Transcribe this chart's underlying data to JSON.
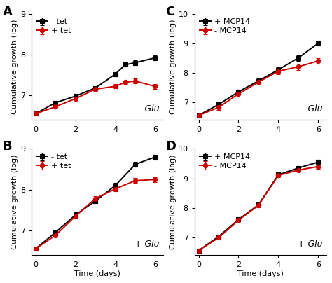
{
  "panels": {
    "A": {
      "label": "A",
      "x": [
        0,
        1,
        2,
        3,
        4,
        4.5,
        5,
        6
      ],
      "black_y": [
        6.55,
        6.82,
        6.98,
        7.18,
        7.52,
        7.75,
        7.8,
        7.92
      ],
      "red_y": [
        6.55,
        6.72,
        6.92,
        7.15,
        7.22,
        7.32,
        7.35,
        7.22
      ],
      "black_err": [
        0.02,
        0.04,
        0.04,
        0.04,
        0.05,
        0.05,
        0.06,
        0.06
      ],
      "red_err": [
        0.02,
        0.04,
        0.04,
        0.04,
        0.05,
        0.05,
        0.06,
        0.06
      ],
      "black_label": "- tet",
      "red_label": "+ tet",
      "annotation": "- Glu",
      "ylim": [
        6.4,
        9.0
      ],
      "yticks": [
        7,
        8,
        9
      ],
      "show_xlabel": false
    },
    "B": {
      "label": "B",
      "x": [
        0,
        1,
        2,
        3,
        4,
        5,
        6
      ],
      "black_y": [
        6.55,
        6.95,
        7.38,
        7.72,
        8.1,
        8.62,
        8.8
      ],
      "red_y": [
        6.55,
        6.88,
        7.35,
        7.78,
        8.02,
        8.22,
        8.25
      ],
      "black_err": [
        0.02,
        0.04,
        0.06,
        0.06,
        0.06,
        0.06,
        0.06
      ],
      "red_err": [
        0.02,
        0.04,
        0.06,
        0.06,
        0.06,
        0.06,
        0.06
      ],
      "black_label": "- tet",
      "red_label": "+ tet",
      "annotation": "+ Glu",
      "ylim": [
        6.4,
        9.0
      ],
      "yticks": [
        7,
        8,
        9
      ],
      "show_xlabel": true
    },
    "C": {
      "label": "C",
      "x": [
        0,
        1,
        2,
        3,
        4,
        5,
        6
      ],
      "black_y": [
        6.55,
        6.92,
        7.35,
        7.72,
        8.1,
        8.5,
        9.0
      ],
      "red_y": [
        6.55,
        6.82,
        7.28,
        7.68,
        8.05,
        8.2,
        8.4
      ],
      "black_err": [
        0.02,
        0.07,
        0.07,
        0.08,
        0.08,
        0.09,
        0.09
      ],
      "red_err": [
        0.02,
        0.09,
        0.09,
        0.1,
        0.1,
        0.1,
        0.1
      ],
      "black_label": "+ MCP14",
      "red_label": "- MCP14",
      "annotation": "- Glu",
      "ylim": [
        6.4,
        10.0
      ],
      "yticks": [
        7,
        8,
        9,
        10
      ],
      "show_xlabel": false
    },
    "D": {
      "label": "D",
      "x": [
        0,
        1,
        2,
        3,
        4,
        5,
        6
      ],
      "black_y": [
        6.55,
        7.02,
        7.6,
        8.1,
        9.12,
        9.35,
        9.55
      ],
      "red_y": [
        6.55,
        6.98,
        7.58,
        8.08,
        9.1,
        9.28,
        9.4
      ],
      "black_err": [
        0.02,
        0.05,
        0.06,
        0.06,
        0.06,
        0.06,
        0.07
      ],
      "red_err": [
        0.02,
        0.05,
        0.06,
        0.06,
        0.06,
        0.06,
        0.07
      ],
      "black_label": "+ MCP14",
      "red_label": "- MCP14",
      "annotation": "+ Glu",
      "ylim": [
        6.4,
        10.0
      ],
      "yticks": [
        7,
        8,
        9,
        10
      ],
      "show_xlabel": true
    }
  },
  "black_color": "#000000",
  "red_color": "#cc0000",
  "xlabel": "Time (days)",
  "ylabel": "Cumulative growth (log)",
  "xticks": [
    0,
    2,
    4,
    6
  ],
  "xlim": [
    -0.2,
    6.4
  ],
  "linewidth": 1.4,
  "markersize": 4.5,
  "capsize": 2,
  "elinewidth": 0.9,
  "label_fontsize": 13,
  "tick_fontsize": 8,
  "axis_label_fontsize": 8,
  "legend_fontsize": 8,
  "annot_fontsize": 9
}
